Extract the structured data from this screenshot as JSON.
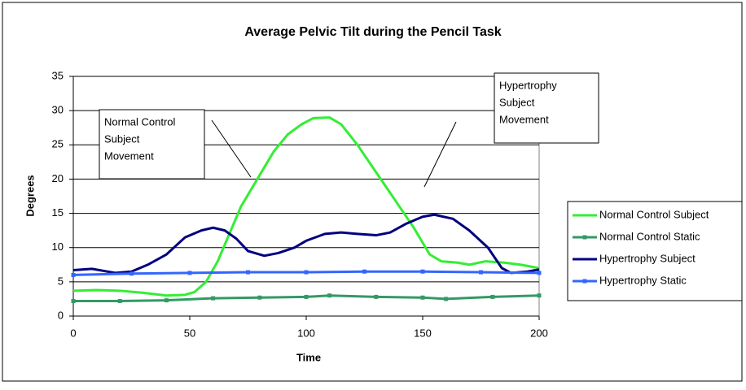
{
  "chart_data": {
    "type": "line",
    "title": "Average Pelvic Tilt during the Pencil Task",
    "xlabel": "Time",
    "ylabel": "Degrees",
    "xlim": [
      0,
      200
    ],
    "xticks": [
      0,
      50,
      100,
      150,
      200
    ],
    "ylim": [
      0,
      35
    ],
    "yticks": [
      0,
      5,
      10,
      15,
      20,
      25,
      30,
      35
    ],
    "grid": true,
    "legend": "right",
    "series": [
      {
        "name": "Normal Control Subject",
        "color": "#33ee33",
        "x": [
          0,
          10,
          20,
          30,
          40,
          48,
          52,
          57,
          62,
          67,
          72,
          79,
          86,
          92,
          98,
          103,
          110,
          115,
          122,
          130,
          138,
          146,
          153,
          158,
          165,
          170,
          177,
          185,
          192,
          200
        ],
        "values": [
          3.7,
          3.8,
          3.7,
          3.4,
          3.0,
          3.1,
          3.5,
          5,
          8,
          12,
          16,
          20,
          24,
          26.5,
          28,
          28.9,
          29,
          28,
          25,
          21,
          17,
          13,
          9,
          8,
          7.8,
          7.5,
          8,
          7.8,
          7.5,
          7
        ]
      },
      {
        "name": "Normal Control Static",
        "color": "#339966",
        "markers": true,
        "x": [
          0,
          20,
          40,
          60,
          80,
          100,
          110,
          130,
          150,
          160,
          180,
          200
        ],
        "values": [
          2.2,
          2.2,
          2.3,
          2.6,
          2.7,
          2.8,
          3.0,
          2.8,
          2.7,
          2.5,
          2.8,
          3.0
        ]
      },
      {
        "name": "Hypertrophy Subject",
        "color": "#000080",
        "x": [
          0,
          8,
          18,
          25,
          32,
          40,
          48,
          55,
          60,
          65,
          70,
          75,
          82,
          88,
          95,
          100,
          108,
          115,
          122,
          130,
          136,
          143,
          150,
          155,
          163,
          170,
          178,
          184,
          188,
          195,
          200
        ],
        "values": [
          6.7,
          6.9,
          6.3,
          6.5,
          7.5,
          9,
          11.5,
          12.5,
          12.9,
          12.5,
          11.3,
          9.5,
          8.8,
          9.2,
          10,
          11,
          12,
          12.2,
          12.0,
          11.8,
          12.2,
          13.5,
          14.5,
          14.8,
          14.2,
          12.5,
          10,
          7,
          6.3,
          6.5,
          6.8
        ]
      },
      {
        "name": "Hypertrophy Static",
        "color": "#3366ff",
        "markers": true,
        "x": [
          0,
          25,
          50,
          75,
          100,
          125,
          150,
          175,
          200
        ],
        "values": [
          6.0,
          6.2,
          6.3,
          6.4,
          6.4,
          6.5,
          6.5,
          6.4,
          6.3
        ]
      }
    ],
    "annotations": [
      {
        "lines": [
          "Normal Control",
          "Subject",
          "Movement"
        ]
      },
      {
        "lines": [
          "Hypertrophy",
          "Subject",
          "Movement"
        ]
      }
    ]
  }
}
